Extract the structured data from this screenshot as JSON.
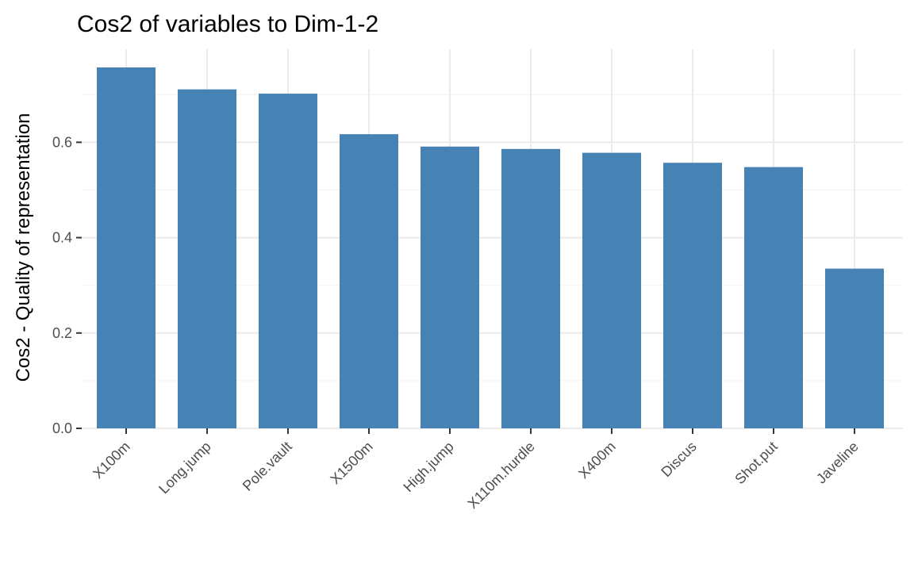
{
  "chart_data": {
    "type": "bar",
    "title": "Cos2 of variables to Dim-1-2",
    "xlabel": "",
    "ylabel": "Cos2 - Quality of representation",
    "categories": [
      "X100m",
      "Long.jump",
      "Pole.vault",
      "X1500m",
      "High.jump",
      "X110m.hurdle",
      "X400m",
      "Discus",
      "Shot.put",
      "Javeline"
    ],
    "values": [
      0.757,
      0.711,
      0.702,
      0.617,
      0.591,
      0.586,
      0.578,
      0.557,
      0.548,
      0.335
    ],
    "ylim": [
      0,
      0.757
    ],
    "yticks": [
      0.0,
      0.2,
      0.4,
      0.6
    ],
    "ytick_labels": [
      "0.0",
      "0.2",
      "0.4",
      "0.6"
    ],
    "bar_color": "#4682B4",
    "grid": true,
    "legend": "none"
  }
}
